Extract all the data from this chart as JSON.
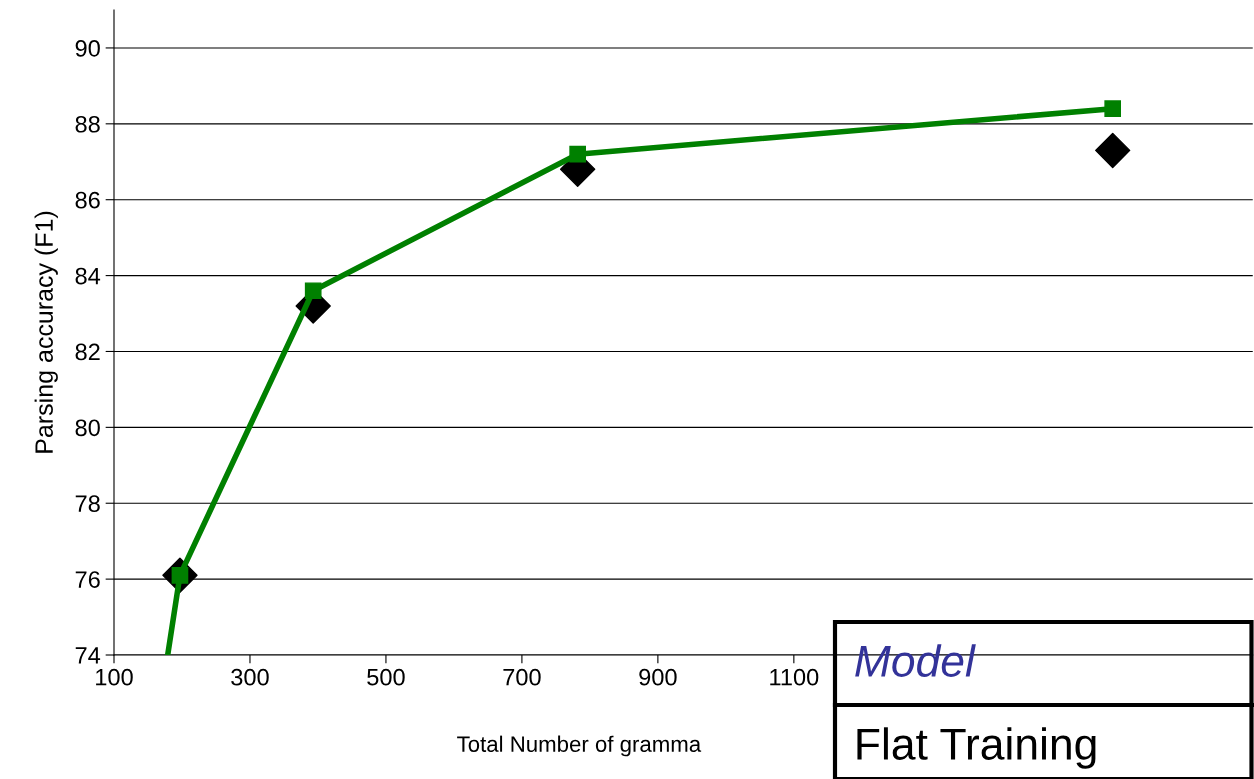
{
  "chart_data": {
    "type": "line",
    "xlabel": "Total Number of gramma",
    "ylabel": "Parsing accuracy (F1)",
    "series": [
      {
        "color": "#008000",
        "marker": "square",
        "x": [
          179,
          197,
          393,
          782,
          1569
        ],
        "values": [
          74,
          76.1,
          83.6,
          87.2,
          88.4
        ]
      },
      {
        "type": "scatter",
        "color": "#000000",
        "marker": "diamond",
        "x": [
          197,
          393,
          782,
          1569
        ],
        "values": [
          76.1,
          83.2,
          86.8,
          87.3
        ]
      }
    ],
    "xlim": [
      100,
      1775
    ],
    "xticks": [
      100,
      300,
      500,
      700,
      900,
      1100
    ],
    "ylim": [
      74,
      91
    ],
    "yticks": [
      74,
      76,
      78,
      80,
      82,
      84,
      86,
      88,
      90
    ],
    "grid": "y",
    "legend": false,
    "annotations": [
      "Model",
      "Flat Training"
    ]
  }
}
